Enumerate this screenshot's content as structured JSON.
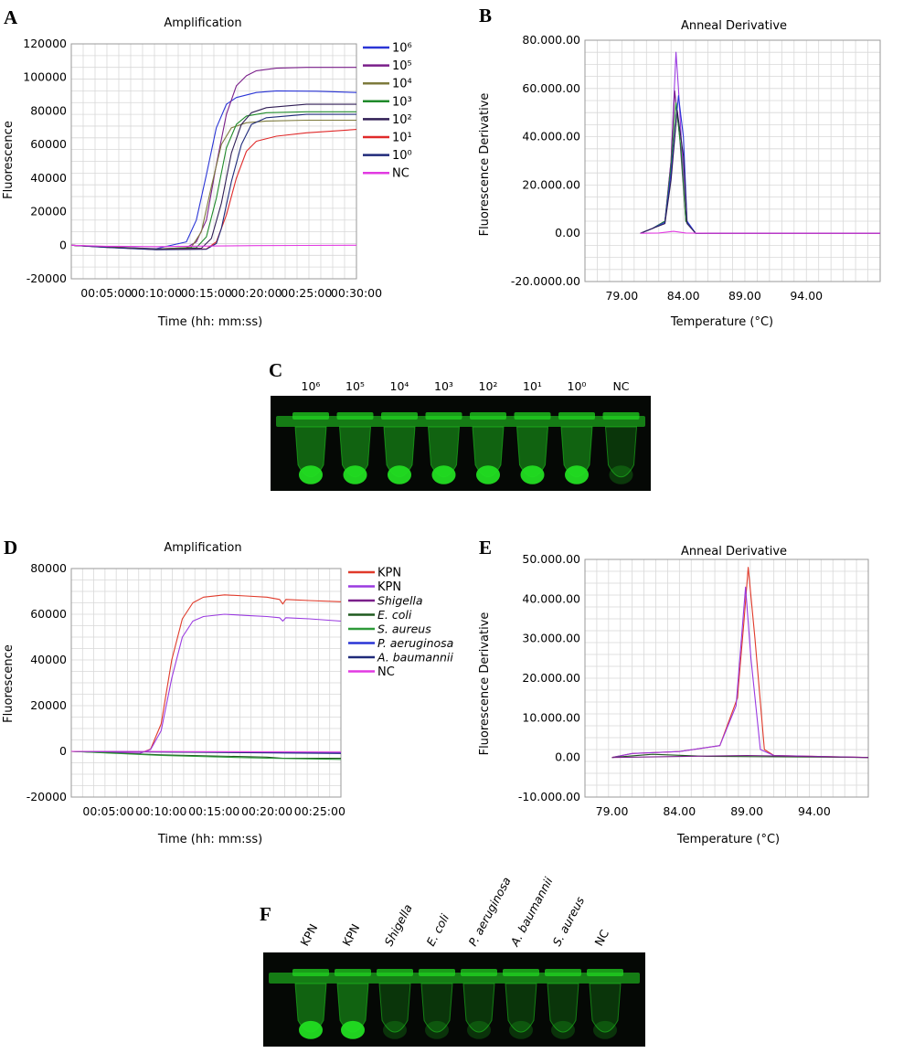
{
  "colors": {
    "grid": "#d8d8d8",
    "frame": "#9a9a9a",
    "gel_bg": "#050805",
    "gel_green": "#22dd22"
  },
  "panels": {
    "A": {
      "letter": "A",
      "title": "Amplification",
      "ylabel": "Fluorescence",
      "xlabel": "Time  (hh: mm:ss)",
      "yticks": [
        "120000",
        "100000",
        "80000",
        "60000",
        "40000",
        "20000",
        "0",
        "-20000"
      ],
      "xticks": [
        "00:05:00",
        "00:10:00",
        "00:15:00",
        "00:20:00",
        "00:25:00",
        "00:30:00"
      ],
      "legend": [
        {
          "label": "10⁶",
          "color": "#2a35d6",
          "italic": false
        },
        {
          "label": "10⁵",
          "color": "#7a1f8a",
          "italic": false
        },
        {
          "label": "10⁴",
          "color": "#7d7a3c",
          "italic": false
        },
        {
          "label": "10³",
          "color": "#1f8a2a",
          "italic": false
        },
        {
          "label": "10²",
          "color": "#301e55",
          "italic": false
        },
        {
          "label": "10¹",
          "color": "#e02a2a",
          "italic": false
        },
        {
          "label": "10⁰",
          "color": "#1f2a7a",
          "italic": false
        },
        {
          "label": "NC",
          "color": "#e23ae2",
          "italic": false
        }
      ]
    },
    "B": {
      "letter": "B",
      "title": "Anneal Derivative",
      "ylabel": "Fluorescence Derivative",
      "xlabel": "Temperature (°C)",
      "yticks": [
        "80.000.00",
        "60.000.00",
        "40.000.00",
        "20.000.00",
        "0.00",
        "-20.0000.00"
      ],
      "xticks": [
        "79.00",
        "84.00",
        "89.00",
        "94.00"
      ]
    },
    "C": {
      "letter": "C",
      "lanes": [
        "10⁶",
        "10⁵",
        "10⁴",
        "10³",
        "10²",
        "10¹",
        "10⁰",
        "NC"
      ],
      "intensity": [
        1,
        1,
        1,
        1,
        1,
        1,
        1,
        0.15
      ]
    },
    "D": {
      "letter": "D",
      "title": "Amplification",
      "ylabel": "Fluorescence",
      "xlabel": "Time  (hh: mm:ss)",
      "yticks": [
        "80000",
        "60000",
        "40000",
        "20000",
        "0",
        "-20000"
      ],
      "xticks": [
        "00:05:00",
        "00:10:00",
        "00:15:00",
        "00:20:00",
        "00:25:00"
      ],
      "legend": [
        {
          "label": "KPN",
          "color": "#e03a2a",
          "italic": false
        },
        {
          "label": "KPN",
          "color": "#9a3ae0",
          "italic": false
        },
        {
          "label": "Shigella",
          "color": "#7a1f8a",
          "italic": true
        },
        {
          "label": "E. coli",
          "color": "#1f5a1f",
          "italic": true
        },
        {
          "label": "S. aureus",
          "color": "#2e9a3a",
          "italic": true
        },
        {
          "label": "P. aeruginosa",
          "color": "#2a35d6",
          "italic": true
        },
        {
          "label": "A. baumannii",
          "color": "#1f2a7a",
          "italic": true
        },
        {
          "label": "NC",
          "color": "#e23ae2",
          "italic": false
        }
      ]
    },
    "E": {
      "letter": "E",
      "title": "Anneal Derivative",
      "ylabel": "Fluorescence Derivative",
      "xlabel": "Temperature (°C)",
      "yticks": [
        "50.000.00",
        "40.000.00",
        "30.000.00",
        "20.000.00",
        "10.000.00",
        "0.00",
        "-10.000.00"
      ],
      "xticks": [
        "79.00",
        "84.00",
        "89.00",
        "94.00"
      ]
    },
    "F": {
      "letter": "F",
      "lanes": [
        {
          "label": "KPN",
          "italic": false
        },
        {
          "label": "KPN",
          "italic": false
        },
        {
          "label": "Shigella",
          "italic": true
        },
        {
          "label": "E. coli",
          "italic": true
        },
        {
          "label": "P. aeruginosa",
          "italic": true
        },
        {
          "label": "A. baumannii",
          "italic": true
        },
        {
          "label": "S. aureus",
          "italic": true
        },
        {
          "label": "NC",
          "italic": false
        }
      ],
      "intensity": [
        1,
        1,
        0.12,
        0.12,
        0.12,
        0.12,
        0.12,
        0.12
      ]
    }
  },
  "chart_data": [
    {
      "panel": "A",
      "type": "line",
      "title": "Amplification",
      "xlabel": "Time  (hh: mm:ss)",
      "ylabel": "Fluorescence",
      "x_unit": "minutes",
      "xlim": [
        1.5,
        30
      ],
      "ylim": [
        -20000,
        120000
      ],
      "grid": true,
      "legend_position": "right",
      "series": [
        {
          "name": "10⁶",
          "color": "#2a35d6",
          "x": [
            1.5,
            5,
            10,
            13,
            14,
            15,
            16,
            17,
            18,
            20,
            22,
            26,
            30
          ],
          "y": [
            0,
            -1000,
            -2000,
            2000,
            15000,
            42000,
            70000,
            84000,
            88000,
            91000,
            92000,
            91800,
            91000
          ]
        },
        {
          "name": "10⁵",
          "color": "#7a1f8a",
          "x": [
            1.5,
            5,
            10,
            13,
            14,
            15,
            16,
            17,
            18,
            19,
            20,
            22,
            25,
            30
          ],
          "y": [
            0,
            -1000,
            -2200,
            -1500,
            2000,
            15000,
            48000,
            78000,
            95000,
            101000,
            104000,
            105500,
            106000,
            106000
          ]
        },
        {
          "name": "10⁴",
          "color": "#7d7a3c",
          "x": [
            1.5,
            5,
            10,
            13.5,
            14.5,
            15.5,
            16.5,
            17.5,
            19,
            21,
            25,
            30
          ],
          "y": [
            0,
            -1000,
            -2300,
            -1200,
            8000,
            35000,
            60000,
            70000,
            73000,
            74000,
            74500,
            74500
          ]
        },
        {
          "name": "10³",
          "color": "#1f8a2a",
          "x": [
            1.5,
            5,
            10,
            14,
            15,
            16,
            17,
            18,
            19,
            21,
            25,
            30
          ],
          "y": [
            0,
            -1100,
            -2400,
            -1500,
            5000,
            28000,
            58000,
            72000,
            77000,
            79000,
            79500,
            79500
          ]
        },
        {
          "name": "10²",
          "color": "#301e55",
          "x": [
            1.5,
            5,
            10,
            14.5,
            15.5,
            16.5,
            17.5,
            18.5,
            19.5,
            21,
            25,
            30
          ],
          "y": [
            0,
            -1200,
            -2500,
            -1800,
            4000,
            25000,
            55000,
            72000,
            79000,
            82000,
            84000,
            84000
          ]
        },
        {
          "name": "10¹",
          "color": "#e02a2a",
          "x": [
            1.5,
            5,
            10,
            15,
            16,
            17,
            18,
            19,
            20,
            22,
            25,
            30
          ],
          "y": [
            0,
            -1200,
            -2600,
            -2200,
            2000,
            18000,
            40000,
            56000,
            62000,
            65000,
            67000,
            69000
          ]
        },
        {
          "name": "10⁰",
          "color": "#1f2a7a",
          "x": [
            1.5,
            5,
            10,
            15,
            16,
            16.5,
            17.5,
            18.5,
            19.5,
            21,
            25,
            30
          ],
          "y": [
            0,
            -1300,
            -2700,
            -2400,
            1000,
            10000,
            38000,
            60000,
            72000,
            76000,
            78000,
            78000
          ]
        },
        {
          "name": "NC",
          "color": "#e23ae2",
          "x": [
            1.5,
            5,
            10,
            15,
            20,
            25,
            30
          ],
          "y": [
            0,
            -600,
            -800,
            -500,
            -200,
            -100,
            0
          ]
        }
      ]
    },
    {
      "panel": "B",
      "type": "line",
      "title": "Anneal Derivative",
      "xlabel": "Temperature (°C)",
      "ylabel": "Fluorescence Derivative",
      "xlim": [
        76,
        100
      ],
      "ylim": [
        -20000,
        80000
      ],
      "grid": true,
      "series": [
        {
          "color": "#9a3ae0",
          "x": [
            80.5,
            81.5,
            82.5,
            83.0,
            83.4,
            83.6,
            84.2,
            85,
            90,
            100
          ],
          "y": [
            0,
            2000,
            5000,
            30000,
            75000,
            60000,
            5000,
            0,
            0,
            0
          ]
        },
        {
          "color": "#7a1f8a",
          "x": [
            80.5,
            81.5,
            82.5,
            83.0,
            83.3,
            83.7,
            84.2,
            85,
            90,
            100
          ],
          "y": [
            0,
            2000,
            5000,
            30000,
            59000,
            40000,
            5000,
            0,
            0,
            0
          ]
        },
        {
          "color": "#1f8a2a",
          "x": [
            80.5,
            81.5,
            82.5,
            83.0,
            83.4,
            83.8,
            84.2,
            85,
            90,
            100
          ],
          "y": [
            0,
            2000,
            5000,
            28000,
            54000,
            35000,
            5000,
            0,
            0,
            0
          ]
        },
        {
          "color": "#2a35d6",
          "x": [
            80.5,
            81.5,
            82.5,
            83.0,
            83.6,
            84.0,
            84.3,
            85,
            90,
            100
          ],
          "y": [
            0,
            2000,
            4500,
            25000,
            57000,
            40000,
            5000,
            0,
            0,
            0
          ]
        },
        {
          "color": "#301e55",
          "x": [
            80.5,
            81.5,
            82.5,
            83.0,
            83.5,
            84.0,
            84.3,
            85,
            90,
            100
          ],
          "y": [
            0,
            2000,
            4000,
            22000,
            51000,
            32000,
            4000,
            0,
            0,
            0
          ]
        },
        {
          "color": "#e23ae2",
          "x": [
            80.5,
            82,
            83.2,
            84.2,
            86,
            100
          ],
          "y": [
            0,
            100,
            800,
            100,
            0,
            0
          ]
        }
      ]
    },
    {
      "panel": "D",
      "type": "line",
      "title": "Amplification",
      "xlabel": "Time  (hh: mm:ss)",
      "ylabel": "Fluorescence",
      "x_unit": "minutes",
      "xlim": [
        1.5,
        27
      ],
      "ylim": [
        -20000,
        80000
      ],
      "grid": true,
      "legend_position": "right",
      "series": [
        {
          "name": "KPN",
          "color": "#e03a2a",
          "x": [
            1.5,
            5,
            8,
            9,
            10,
            11,
            12,
            13,
            14,
            16,
            18,
            20,
            21.2,
            21.5,
            21.8,
            24,
            27
          ],
          "y": [
            0,
            -500,
            -800,
            1000,
            12000,
            40000,
            58000,
            65000,
            67500,
            68500,
            68000,
            67500,
            66500,
            64500,
            66500,
            66000,
            65500
          ]
        },
        {
          "name": "KPN",
          "color": "#9a3ae0",
          "x": [
            1.5,
            5,
            8,
            9,
            10,
            11,
            12,
            13,
            14,
            16,
            18,
            20,
            21.2,
            21.5,
            21.8,
            24,
            27
          ],
          "y": [
            0,
            -500,
            -800,
            800,
            9000,
            32000,
            50000,
            57000,
            59000,
            60000,
            59500,
            59000,
            58500,
            57000,
            58500,
            58000,
            57000
          ]
        },
        {
          "name": "Shigella",
          "color": "#7a1f8a",
          "x": [
            1.5,
            27
          ],
          "y": [
            0,
            -500
          ]
        },
        {
          "name": "E. coli",
          "color": "#1f5a1f",
          "x": [
            1.5,
            10,
            20,
            21.5,
            27
          ],
          "y": [
            0,
            -1500,
            -2500,
            -3000,
            -3000
          ]
        },
        {
          "name": "S. aureus",
          "color": "#2e9a3a",
          "x": [
            1.5,
            10,
            20,
            27
          ],
          "y": [
            0,
            -1800,
            -3000,
            -3500
          ]
        },
        {
          "name": "P. aeruginosa",
          "color": "#2a35d6",
          "x": [
            1.5,
            27
          ],
          "y": [
            0,
            -700
          ]
        },
        {
          "name": "A. baumannii",
          "color": "#1f2a7a",
          "x": [
            1.5,
            27
          ],
          "y": [
            0,
            -900
          ]
        },
        {
          "name": "NC",
          "color": "#e23ae2",
          "x": [
            1.5,
            27
          ],
          "y": [
            0,
            -300
          ]
        }
      ]
    },
    {
      "panel": "E",
      "type": "line",
      "title": "Anneal Derivative",
      "xlabel": "Temperature (°C)",
      "ylabel": "Fluorescence Derivative",
      "xlim": [
        77,
        98
      ],
      "ylim": [
        -10000,
        50000
      ],
      "grid": true,
      "series": [
        {
          "color": "#e03a2a",
          "x": [
            79,
            80.5,
            84,
            87,
            88.3,
            88.8,
            89.1,
            89.6,
            90.3,
            91,
            98
          ],
          "y": [
            0,
            1000,
            1500,
            3000,
            15000,
            35000,
            48000,
            30000,
            2000,
            500,
            0
          ]
        },
        {
          "color": "#9a3ae0",
          "x": [
            79,
            80.5,
            84,
            87,
            88.2,
            88.6,
            88.9,
            89.3,
            90,
            91,
            98
          ],
          "y": [
            0,
            1000,
            1500,
            3000,
            13000,
            30000,
            43000,
            25000,
            2000,
            500,
            0
          ]
        },
        {
          "color": "#1f5a1f",
          "x": [
            79,
            82,
            86,
            98
          ],
          "y": [
            0,
            800,
            300,
            0
          ]
        },
        {
          "color": "#7a1f8a",
          "x": [
            79,
            89,
            98
          ],
          "y": [
            0,
            500,
            0
          ]
        }
      ]
    }
  ]
}
